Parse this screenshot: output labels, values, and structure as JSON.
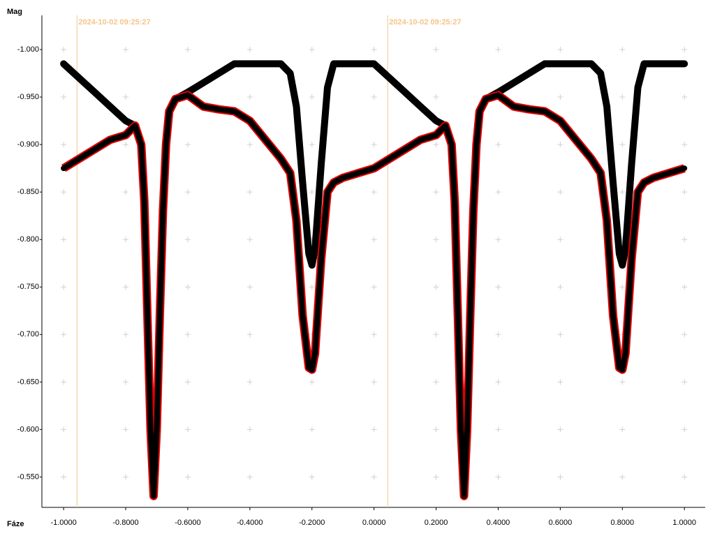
{
  "chart_data": {
    "type": "line",
    "y_label": "Mag",
    "x_label": "Fáze",
    "xlim": [
      -1.07,
      1.067
    ],
    "ylim": [
      -0.518,
      -1.036
    ],
    "xticks": [
      {
        "value": -1.0,
        "label": "-1.0000"
      },
      {
        "value": -0.8,
        "label": "-0.8000"
      },
      {
        "value": -0.6,
        "label": "-0.6000"
      },
      {
        "value": -0.4,
        "label": "-0.4000"
      },
      {
        "value": -0.2,
        "label": "-0.2000"
      },
      {
        "value": 0,
        "label": "0.0000"
      },
      {
        "value": 0.2,
        "label": "0.2000"
      },
      {
        "value": 0.4,
        "label": "0.4000"
      },
      {
        "value": 0.6,
        "label": "0.6000"
      },
      {
        "value": 0.8,
        "label": "0.8000"
      },
      {
        "value": 1.0,
        "label": "1.0000"
      }
    ],
    "yticks": [
      {
        "value": -1.0,
        "label": "-1.000"
      },
      {
        "value": -0.95,
        "label": "-0.950"
      },
      {
        "value": -0.9,
        "label": "-0.900"
      },
      {
        "value": -0.85,
        "label": "-0.850"
      },
      {
        "value": -0.8,
        "label": "-0.800"
      },
      {
        "value": -0.75,
        "label": "-0.750"
      },
      {
        "value": -0.7,
        "label": "-0.700"
      },
      {
        "value": -0.65,
        "label": "-0.650"
      },
      {
        "value": -0.6,
        "label": "-0.600"
      },
      {
        "value": -0.55,
        "label": "-0.550"
      }
    ],
    "grid": true,
    "annotations": [
      {
        "x": -0.957,
        "text": "2024-10-02 09:25:27",
        "color": "#f5c58a"
      },
      {
        "x": 0.044,
        "text": "2024-10-02 09:25:27",
        "color": "#f5c58a"
      }
    ],
    "x": [
      -1.0,
      -0.95,
      -0.9,
      -0.85,
      -0.8,
      -0.77,
      -0.75,
      -0.74,
      -0.73,
      -0.72,
      -0.71,
      -0.7,
      -0.69,
      -0.68,
      -0.67,
      -0.66,
      -0.64,
      -0.6,
      -0.55,
      -0.5,
      -0.45,
      -0.4,
      -0.35,
      -0.3,
      -0.27,
      -0.25,
      -0.23,
      -0.21,
      -0.2,
      -0.19,
      -0.17,
      -0.15,
      -0.13,
      -0.1,
      -0.05,
      0,
      0.05,
      0.1,
      0.15,
      0.2,
      0.23,
      0.25,
      0.26,
      0.27,
      0.28,
      0.29,
      0.3,
      0.31,
      0.32,
      0.33,
      0.34,
      0.36,
      0.4,
      0.45,
      0.5,
      0.55,
      0.6,
      0.65,
      0.7,
      0.73,
      0.75,
      0.77,
      0.79,
      0.8,
      0.81,
      0.83,
      0.85,
      0.87,
      0.9,
      0.95,
      1.0
    ],
    "series": [
      {
        "color": "#000000",
        "values": [
          -0.985,
          -0.97,
          -0.955,
          -0.94,
          -0.925,
          -0.92,
          -0.9,
          -0.84,
          -0.72,
          -0.6,
          -0.53,
          -0.6,
          -0.72,
          -0.83,
          -0.9,
          -0.935,
          -0.948,
          -0.955,
          -0.965,
          -0.975,
          -0.985,
          -0.985,
          -0.985,
          -0.985,
          -0.975,
          -0.94,
          -0.86,
          -0.785,
          -0.773,
          -0.79,
          -0.88,
          -0.96,
          -0.985,
          -0.985,
          -0.985,
          -0.985,
          -0.97,
          -0.955,
          -0.94,
          -0.925,
          -0.92,
          -0.9,
          -0.84,
          -0.72,
          -0.6,
          -0.53,
          -0.6,
          -0.72,
          -0.83,
          -0.9,
          -0.935,
          -0.948,
          -0.955,
          -0.965,
          -0.975,
          -0.985,
          -0.985,
          -0.985,
          -0.985,
          -0.975,
          -0.94,
          -0.86,
          -0.785,
          -0.773,
          -0.79,
          -0.88,
          -0.96,
          -0.985,
          -0.985,
          -0.985,
          -0.985
        ]
      },
      {
        "color": "#000000",
        "edge_color": "#e00000",
        "values": [
          -0.875,
          -0.885,
          -0.895,
          -0.905,
          -0.91,
          -0.92,
          -0.9,
          -0.84,
          -0.72,
          -0.6,
          -0.53,
          -0.6,
          -0.72,
          -0.83,
          -0.9,
          -0.935,
          -0.948,
          -0.952,
          -0.94,
          -0.937,
          -0.935,
          -0.925,
          -0.905,
          -0.885,
          -0.87,
          -0.82,
          -0.72,
          -0.665,
          -0.663,
          -0.68,
          -0.78,
          -0.85,
          -0.86,
          -0.865,
          -0.87,
          -0.875,
          -0.885,
          -0.895,
          -0.905,
          -0.91,
          -0.92,
          -0.9,
          -0.84,
          -0.72,
          -0.6,
          -0.53,
          -0.6,
          -0.72,
          -0.83,
          -0.9,
          -0.935,
          -0.948,
          -0.952,
          -0.94,
          -0.937,
          -0.935,
          -0.925,
          -0.905,
          -0.885,
          -0.87,
          -0.82,
          -0.72,
          -0.665,
          -0.663,
          -0.68,
          -0.78,
          -0.85,
          -0.86,
          -0.865,
          -0.87,
          -0.875
        ]
      }
    ]
  }
}
